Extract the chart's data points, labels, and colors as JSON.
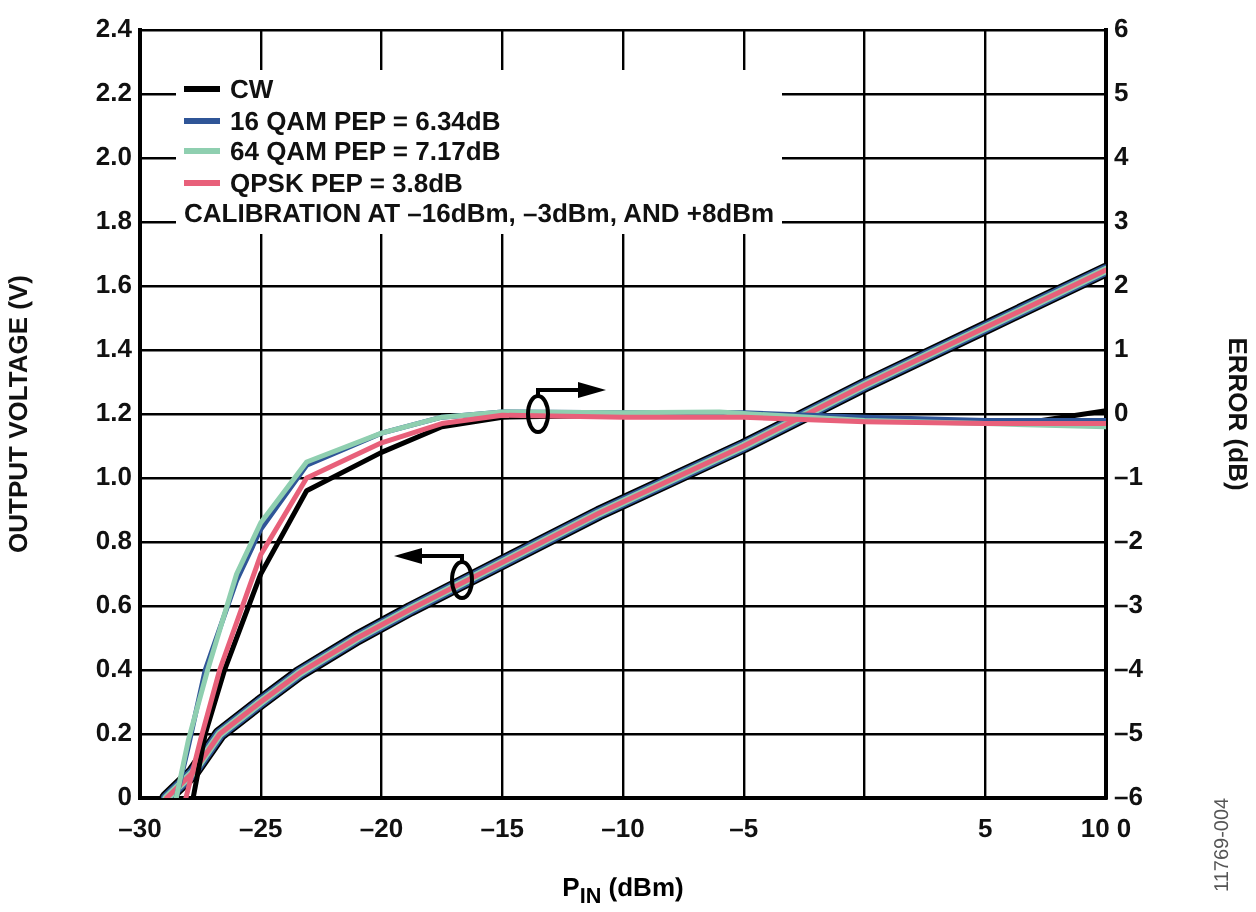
{
  "chart_data": {
    "type": "line",
    "xlabel": "P$_{IN}$ (dBm)",
    "ylabel": "OUTPUT VOLTAGE (V)",
    "y2label": "ERROR (dB)",
    "xlim": [
      -30,
      10
    ],
    "xticks": [
      {
        "value": -30,
        "label": "–30"
      },
      {
        "value": -25,
        "label": "–25"
      },
      {
        "value": -20,
        "label": "–20"
      },
      {
        "value": -15,
        "label": "–15"
      },
      {
        "value": -10,
        "label": "–10"
      },
      {
        "value": -5,
        "label": "–5"
      },
      {
        "value": 0,
        "label": null
      },
      5,
      {
        "value": 10,
        "label": "10 0"
      }
    ],
    "ylim": [
      0,
      2.4
    ],
    "yticks": [
      0,
      0.2,
      0.4,
      0.6,
      0.8,
      {
        "value": 1,
        "label": "1.0"
      },
      1.2,
      1.4,
      1.6,
      1.8,
      {
        "value": 2,
        "label": "2.0"
      },
      2.2,
      2.4
    ],
    "y2lim": [
      -6,
      6
    ],
    "y2ticks": [
      {
        "value": -6,
        "label": "–6"
      },
      {
        "value": -5,
        "label": "–5"
      },
      {
        "value": -4,
        "label": "–4"
      },
      {
        "value": -3,
        "label": "–3"
      },
      {
        "value": -2,
        "label": "–2"
      },
      {
        "value": -1,
        "label": "–1"
      },
      0,
      1,
      2,
      3,
      4,
      5,
      6
    ],
    "grid": true,
    "legend": "top left",
    "marker": "none",
    "line_style": "solid",
    "annotations": [
      "CALIBRATION AT –16dBm, –3dBm, AND +8dBm",
      "11769-004"
    ],
    "series": [
      {
        "name": "CW",
        "color": "#000000",
        "x": [
          -28.9,
          -27.8,
          -26.7,
          -25,
          -23.4,
          -21,
          -18.8,
          -11,
          -5,
          0,
          5,
          10
        ],
        "values": [
          0,
          0.08,
          0.2,
          0.3,
          0.39,
          0.5,
          0.59,
          0.89,
          1.1,
          1.29,
          1.47,
          1.65
        ]
      },
      {
        "name": "16 QAM PEP = 6.34dB",
        "color": "#2f5597",
        "x": [
          -28.9,
          -27.8,
          -26.7,
          -25,
          -23.4,
          -21,
          -18.8,
          -11,
          -5,
          0,
          5,
          10
        ],
        "values": [
          0,
          0.08,
          0.2,
          0.3,
          0.39,
          0.5,
          0.59,
          0.89,
          1.1,
          1.29,
          1.47,
          1.65
        ]
      },
      {
        "name": "64 QAM PEP = 7.17dB",
        "color": "#8fcfb0",
        "x": [
          -28.9,
          -27.8,
          -26.7,
          -25,
          -23.4,
          -21,
          -18.8,
          -11,
          -5,
          0,
          5,
          10
        ],
        "values": [
          0,
          0.08,
          0.2,
          0.3,
          0.39,
          0.5,
          0.59,
          0.89,
          1.1,
          1.29,
          1.47,
          1.65
        ]
      },
      {
        "name": "QPSK PEP = 3.8dB",
        "color": "#e8607a",
        "x": [
          -28.9,
          -27.8,
          -26.7,
          -25,
          -23.4,
          -21,
          -18.8,
          -11,
          -5,
          0,
          5,
          10
        ],
        "values": [
          0,
          0.08,
          0.2,
          0.3,
          0.39,
          0.5,
          0.59,
          0.89,
          1.1,
          1.29,
          1.47,
          1.65
        ]
      },
      {
        "color": "#000000",
        "axis": "y2",
        "x": [
          -27.8,
          -27.3,
          -26.5,
          -25,
          -23.1,
          -20,
          -17.5,
          -15,
          -10,
          -5,
          0,
          5,
          7,
          10
        ],
        "values": [
          -6,
          -5,
          -4,
          -2.5,
          -1.2,
          -0.6,
          -0.2,
          -0.05,
          -0.02,
          0,
          -0.1,
          -0.1,
          -0.12,
          0.05
        ]
      },
      {
        "color": "#2f5597",
        "axis": "y2",
        "x": [
          -28.5,
          -28,
          -27.3,
          -26,
          -25,
          -23.1,
          -20,
          -17.5,
          -15,
          -10,
          -5,
          0,
          5,
          10
        ],
        "values": [
          -6,
          -5.2,
          -4,
          -2.6,
          -1.8,
          -0.8,
          -0.3,
          -0.05,
          0.03,
          0.02,
          0.02,
          -0.05,
          -0.1,
          -0.1
        ]
      },
      {
        "color": "#8fcfb0",
        "axis": "y2",
        "x": [
          -28.5,
          -28,
          -27.2,
          -26,
          -25,
          -23.1,
          -20,
          -17.5,
          -15,
          -10,
          -6,
          0,
          5,
          10
        ],
        "values": [
          -6,
          -5.1,
          -4,
          -2.5,
          -1.7,
          -0.75,
          -0.3,
          -0.05,
          0.03,
          0.02,
          0.03,
          -0.1,
          -0.15,
          -0.2
        ]
      },
      {
        "color": "#e8607a",
        "axis": "y2",
        "x": [
          -28.1,
          -27.5,
          -26.7,
          -25,
          -23.1,
          -20,
          -17.5,
          -15,
          -10,
          -5,
          0,
          5,
          10
        ],
        "values": [
          -6,
          -5.1,
          -4,
          -2.2,
          -1,
          -0.45,
          -0.15,
          -0.02,
          -0.05,
          -0.05,
          -0.12,
          -0.15,
          -0.15
        ]
      }
    ]
  }
}
